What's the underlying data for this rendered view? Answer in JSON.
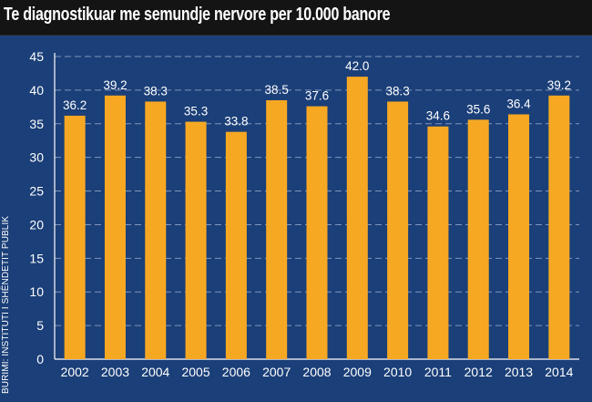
{
  "title": "Te diagnostikuar me semundje nervore per 10.000 banore",
  "source": "BURIMI: INSTITUTI I SHËNDETIT PUBLIK",
  "colors": {
    "background": "#1b3f78",
    "bar": "#f7a823",
    "text": "#ffffff",
    "grid": "#7f95bd",
    "title_bg": "#141414"
  },
  "chart_data": {
    "type": "bar",
    "categories": [
      "2002",
      "2003",
      "2004",
      "2005",
      "2006",
      "2007",
      "2008",
      "2009",
      "2010",
      "2011",
      "2012",
      "2013",
      "2014"
    ],
    "values": [
      36.2,
      39.2,
      38.3,
      35.3,
      33.8,
      38.5,
      37.6,
      42.0,
      38.3,
      34.6,
      35.6,
      36.4,
      39.2
    ],
    "value_labels": [
      "36.2",
      "39.2",
      "38.3",
      "35.3",
      "33.8",
      "38.5",
      "37.6",
      "42.0",
      "38.3",
      "34.6",
      "35.6",
      "36.4",
      "39.2"
    ],
    "yticks": [
      "0",
      "5",
      "10",
      "15",
      "20",
      "25",
      "30",
      "35",
      "40",
      "45"
    ],
    "ylim": [
      0,
      45
    ],
    "grid": true,
    "title": "Te diagnostikuar me semundje nervore per 10.000 banore",
    "xlabel": "",
    "ylabel": ""
  }
}
